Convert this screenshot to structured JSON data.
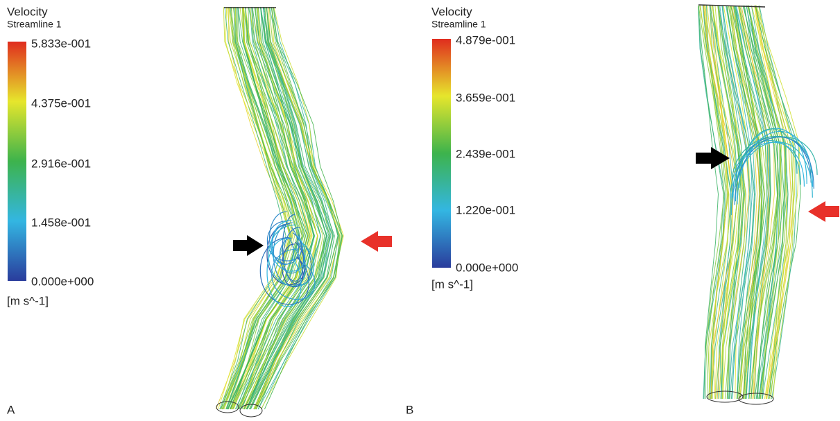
{
  "panels": [
    {
      "label": "A",
      "title": "Velocity",
      "subtitle": "Streamline 1",
      "scale_labels": [
        "5.833e-001",
        "4.375e-001",
        "2.916e-001",
        "1.458e-001",
        "0.000e+000"
      ],
      "unit": "[m s^-1]"
    },
    {
      "label": "B",
      "title": "Velocity",
      "subtitle": "Streamline 1",
      "scale_labels": [
        "4.879e-001",
        "3.659e-001",
        "2.439e-001",
        "1.220e-001",
        "0.000e+000"
      ],
      "unit": "[m s^-1]"
    }
  ]
}
